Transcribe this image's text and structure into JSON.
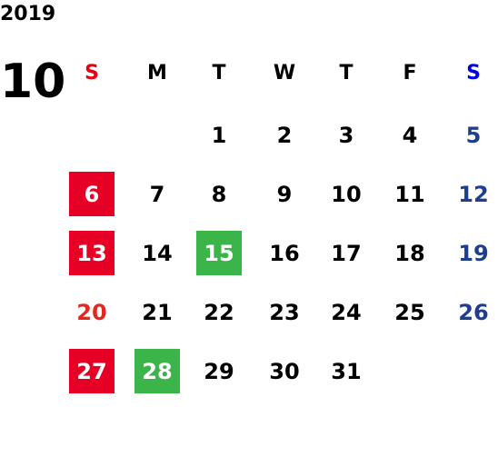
{
  "year": "2019",
  "month": "10",
  "weekdays": [
    {
      "text": "S",
      "color": "#e60012"
    },
    {
      "text": "M"
    },
    {
      "text": "T"
    },
    {
      "text": "W"
    },
    {
      "text": "T"
    },
    {
      "text": "F"
    },
    {
      "text": "S",
      "color": "#0000e6"
    }
  ],
  "weeks": [
    [
      null,
      null,
      {
        "text": "1"
      },
      {
        "text": "2"
      },
      {
        "text": "3"
      },
      {
        "text": "4"
      },
      {
        "text": "5",
        "color": "#1d3f8e"
      }
    ],
    [
      {
        "text": "6",
        "color": "#ffffff",
        "box": "#e60026"
      },
      {
        "text": "7"
      },
      {
        "text": "8"
      },
      {
        "text": "9"
      },
      {
        "text": "10"
      },
      {
        "text": "11"
      },
      {
        "text": "12",
        "color": "#1d3f8e"
      }
    ],
    [
      {
        "text": "13",
        "color": "#ffffff",
        "box": "#e60026"
      },
      {
        "text": "14"
      },
      {
        "text": "15",
        "color": "#ffffff",
        "box": "#3bb54a"
      },
      {
        "text": "16"
      },
      {
        "text": "17"
      },
      {
        "text": "18"
      },
      {
        "text": "19",
        "color": "#1d3f8e"
      }
    ],
    [
      {
        "text": "20",
        "color": "#e8261e"
      },
      {
        "text": "21"
      },
      {
        "text": "22"
      },
      {
        "text": "23"
      },
      {
        "text": "24"
      },
      {
        "text": "25"
      },
      {
        "text": "26",
        "color": "#1d3f8e"
      }
    ],
    [
      {
        "text": "27",
        "color": "#ffffff",
        "box": "#e60026"
      },
      {
        "text": "28",
        "color": "#ffffff",
        "box": "#3bb54a"
      },
      {
        "text": "29"
      },
      {
        "text": "30"
      },
      {
        "text": "31"
      },
      null,
      null
    ]
  ]
}
